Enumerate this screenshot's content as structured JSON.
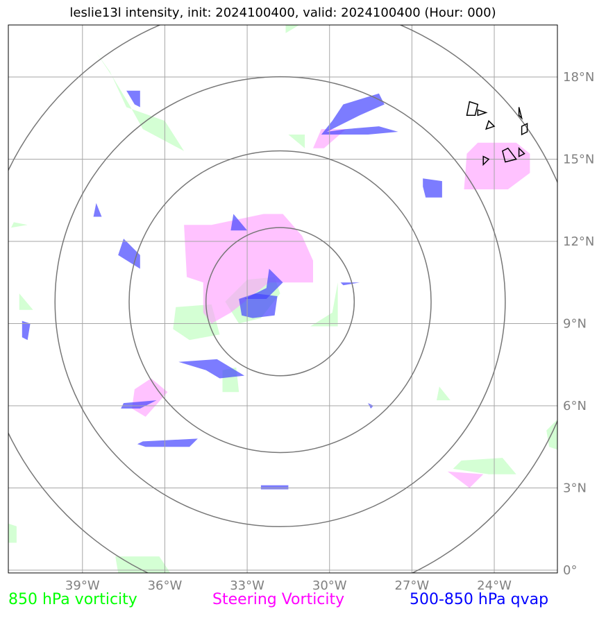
{
  "title": "leslie13l intensity, init: 2024100400, valid: 2024100400 (Hour: 000)",
  "legend": [
    {
      "label": "850 hPa vorticity",
      "color": "#00ff00"
    },
    {
      "label": "Steering Vorticity",
      "color": "#ff00ff"
    },
    {
      "label": "500-850 hPa qvap",
      "color": "#0000ff"
    }
  ],
  "colors": {
    "vort850_fill": "#ccffcc",
    "steering_fill": "#ff99ff",
    "qvap_fill": "#4444ff",
    "grid": "#a6a6a6",
    "range_rings": "#777777",
    "coastline": "#000000"
  },
  "map": {
    "lon_range": [
      -41.7,
      -21.7
    ],
    "lat_range": [
      -0.1,
      19.9
    ],
    "lon_ticks": [
      {
        "value": -39,
        "label": "39°W"
      },
      {
        "value": -36,
        "label": "36°W"
      },
      {
        "value": -33,
        "label": "33°W"
      },
      {
        "value": -30,
        "label": "30°W"
      },
      {
        "value": -27,
        "label": "27°W"
      },
      {
        "value": -24,
        "label": "24°W"
      }
    ],
    "lat_ticks": [
      {
        "value": 0,
        "label": "0°"
      },
      {
        "value": 3,
        "label": "3°N"
      },
      {
        "value": 6,
        "label": "6°N"
      },
      {
        "value": 9,
        "label": "9°N"
      },
      {
        "value": 12,
        "label": "12°N"
      },
      {
        "value": 15,
        "label": "15°N"
      },
      {
        "value": 18,
        "label": "18°N"
      }
    ],
    "storm_center": {
      "lon": -31.8,
      "lat": 9.8
    },
    "range_rings_deg": [
      2.7,
      5.5,
      8.2,
      11.0
    ],
    "vort850_polygons": [
      [
        [
          -38.5,
          18.9
        ],
        [
          -37.9,
          18.0
        ],
        [
          -37.3,
          17.0
        ],
        [
          -36.8,
          16.1
        ],
        [
          -35.3,
          15.3
        ],
        [
          -36.0,
          16.4
        ],
        [
          -37.4,
          16.9
        ],
        [
          -38.0,
          18.2
        ]
      ],
      [
        [
          -31.6,
          19.6
        ],
        [
          -31.1,
          19.9
        ],
        [
          -31.6,
          19.9
        ]
      ],
      [
        [
          -31.5,
          15.9
        ],
        [
          -30.9,
          15.9
        ],
        [
          -30.9,
          15.4
        ]
      ],
      [
        [
          -35.6,
          9.6
        ],
        [
          -34.3,
          9.7
        ],
        [
          -34.0,
          8.6
        ],
        [
          -35.1,
          8.4
        ],
        [
          -35.7,
          8.8
        ]
      ],
      [
        [
          -33.8,
          9.8
        ],
        [
          -33.0,
          10.6
        ],
        [
          -32.0,
          10.7
        ],
        [
          -31.8,
          10.1
        ],
        [
          -32.5,
          9.2
        ],
        [
          -33.3,
          9.0
        ]
      ],
      [
        [
          -29.7,
          10.5
        ],
        [
          -29.7,
          8.9
        ],
        [
          -30.7,
          8.9
        ],
        [
          -29.9,
          9.4
        ]
      ],
      [
        [
          -41.3,
          10.1
        ],
        [
          -40.8,
          9.5
        ],
        [
          -41.3,
          9.5
        ]
      ],
      [
        [
          -33.9,
          7.3
        ],
        [
          -33.4,
          7.4
        ],
        [
          -33.3,
          6.5
        ],
        [
          -33.9,
          6.5
        ]
      ],
      [
        [
          -26.0,
          6.7
        ],
        [
          -25.6,
          6.2
        ],
        [
          -26.1,
          6.2
        ]
      ],
      [
        [
          -25.2,
          4.0
        ],
        [
          -23.7,
          4.1
        ],
        [
          -23.2,
          3.5
        ],
        [
          -24.2,
          3.5
        ],
        [
          -25.5,
          3.7
        ]
      ],
      [
        [
          -22.1,
          5.1
        ],
        [
          -21.7,
          5.5
        ],
        [
          -21.7,
          4.4
        ],
        [
          -22.0,
          4.5
        ]
      ],
      [
        [
          -41.7,
          1.7
        ],
        [
          -41.4,
          1.6
        ],
        [
          -41.4,
          1.0
        ],
        [
          -41.7,
          1.0
        ]
      ],
      [
        [
          -37.8,
          0.5
        ],
        [
          -36.2,
          0.5
        ],
        [
          -35.8,
          -0.1
        ],
        [
          -37.7,
          -0.1
        ]
      ],
      [
        [
          -41.5,
          12.7
        ],
        [
          -41.0,
          12.6
        ],
        [
          -41.6,
          12.5
        ]
      ]
    ],
    "steering_polygons": [
      [
        [
          -34.3,
          12.6
        ],
        [
          -32.4,
          13.0
        ],
        [
          -31.7,
          13.0
        ],
        [
          -31.0,
          12.2
        ],
        [
          -30.6,
          11.3
        ],
        [
          -30.6,
          10.5
        ],
        [
          -32.2,
          10.5
        ],
        [
          -33.6,
          9.4
        ],
        [
          -34.3,
          9.0
        ],
        [
          -34.6,
          9.4
        ],
        [
          -34.6,
          10.5
        ],
        [
          -35.2,
          10.7
        ],
        [
          -35.3,
          12.6
        ]
      ],
      [
        [
          -24.6,
          15.6
        ],
        [
          -23.2,
          15.6
        ],
        [
          -22.7,
          15.2
        ],
        [
          -22.7,
          14.5
        ],
        [
          -23.5,
          13.9
        ],
        [
          -25.1,
          13.9
        ],
        [
          -25.0,
          15.2
        ]
      ],
      [
        [
          -30.3,
          16.1
        ],
        [
          -29.4,
          16.1
        ],
        [
          -30.2,
          15.4
        ],
        [
          -30.6,
          15.4
        ]
      ],
      [
        [
          -36.5,
          7.0
        ],
        [
          -35.9,
          6.5
        ],
        [
          -36.7,
          5.6
        ],
        [
          -37.2,
          5.9
        ],
        [
          -37.1,
          6.6
        ]
      ],
      [
        [
          -25.7,
          3.6
        ],
        [
          -24.4,
          3.5
        ],
        [
          -24.9,
          3.0
        ]
      ]
    ],
    "qvap_polygons": [
      [
        [
          -37.4,
          17.5
        ],
        [
          -36.9,
          17.5
        ],
        [
          -36.9,
          16.9
        ],
        [
          -37.1,
          17.0
        ]
      ],
      [
        [
          -30.1,
          16.0
        ],
        [
          -28.9,
          16.6
        ],
        [
          -28.0,
          17.0
        ],
        [
          -28.2,
          17.4
        ],
        [
          -29.5,
          17.0
        ],
        [
          -29.9,
          16.4
        ],
        [
          -30.3,
          15.9
        ],
        [
          -28.6,
          15.9
        ],
        [
          -27.5,
          16.0
        ],
        [
          -28.2,
          16.2
        ],
        [
          -29.4,
          16.1
        ]
      ],
      [
        [
          -26.6,
          14.3
        ],
        [
          -25.9,
          14.2
        ],
        [
          -25.9,
          13.6
        ],
        [
          -26.5,
          13.6
        ],
        [
          -26.6,
          14.0
        ]
      ],
      [
        [
          -33.5,
          13.0
        ],
        [
          -33.0,
          12.4
        ],
        [
          -33.6,
          12.4
        ]
      ],
      [
        [
          -38.5,
          13.4
        ],
        [
          -38.3,
          12.9
        ],
        [
          -38.6,
          12.9
        ]
      ],
      [
        [
          -37.5,
          12.1
        ],
        [
          -36.9,
          11.5
        ],
        [
          -36.9,
          11.0
        ],
        [
          -37.7,
          11.5
        ]
      ],
      [
        [
          -32.2,
          11.0
        ],
        [
          -31.8,
          10.6
        ],
        [
          -31.7,
          10.5
        ],
        [
          -32.3,
          9.9
        ],
        [
          -33.1,
          9.9
        ],
        [
          -32.3,
          10.3
        ]
      ],
      [
        [
          -33.3,
          9.9
        ],
        [
          -32.7,
          10.1
        ],
        [
          -31.9,
          10.0
        ],
        [
          -32.0,
          9.3
        ],
        [
          -32.8,
          9.2
        ],
        [
          -33.2,
          9.3
        ]
      ],
      [
        [
          -29.6,
          10.5
        ],
        [
          -28.9,
          10.5
        ],
        [
          -29.5,
          10.4
        ]
      ],
      [
        [
          -41.2,
          9.1
        ],
        [
          -40.9,
          9.0
        ],
        [
          -41.0,
          8.4
        ],
        [
          -41.2,
          8.5
        ]
      ],
      [
        [
          -35.5,
          7.6
        ],
        [
          -34.1,
          7.7
        ],
        [
          -33.1,
          7.1
        ],
        [
          -34.0,
          7.0
        ],
        [
          -34.5,
          7.3
        ]
      ],
      [
        [
          -37.5,
          6.1
        ],
        [
          -36.3,
          6.2
        ],
        [
          -36.9,
          5.9
        ],
        [
          -37.6,
          5.9
        ]
      ],
      [
        [
          -36.8,
          4.7
        ],
        [
          -34.8,
          4.8
        ],
        [
          -35.1,
          4.5
        ],
        [
          -36.7,
          4.5
        ],
        [
          -37.0,
          4.6
        ]
      ],
      [
        [
          -32.5,
          3.1
        ],
        [
          -31.5,
          3.1
        ],
        [
          -31.5,
          2.95
        ],
        [
          -32.5,
          2.95
        ]
      ],
      [
        [
          -28.6,
          6.1
        ],
        [
          -28.4,
          6.0
        ],
        [
          -28.5,
          5.9
        ]
      ]
    ],
    "coastline_islands": [
      [
        [
          -25.0,
          16.6
        ],
        [
          -24.7,
          16.6
        ],
        [
          -24.6,
          17.0
        ],
        [
          -24.9,
          17.1
        ]
      ],
      [
        [
          -24.6,
          16.6
        ],
        [
          -24.3,
          16.7
        ],
        [
          -24.6,
          16.8
        ]
      ],
      [
        [
          -24.3,
          16.1
        ],
        [
          -24.0,
          16.2
        ],
        [
          -24.2,
          16.4
        ]
      ],
      [
        [
          -23.0,
          15.9
        ],
        [
          -22.8,
          16.0
        ],
        [
          -22.8,
          16.3
        ],
        [
          -23.0,
          16.2
        ]
      ],
      [
        [
          -23.1,
          16.6
        ],
        [
          -23.0,
          16.5
        ],
        [
          -23.1,
          16.9
        ]
      ],
      [
        [
          -23.6,
          14.9
        ],
        [
          -23.2,
          15.0
        ],
        [
          -23.5,
          15.4
        ],
        [
          -23.7,
          15.3
        ]
      ],
      [
        [
          -23.1,
          15.1
        ],
        [
          -22.9,
          15.2
        ],
        [
          -23.1,
          15.4
        ]
      ],
      [
        [
          -24.4,
          14.8
        ],
        [
          -24.2,
          15.0
        ],
        [
          -24.4,
          15.1
        ]
      ]
    ]
  }
}
